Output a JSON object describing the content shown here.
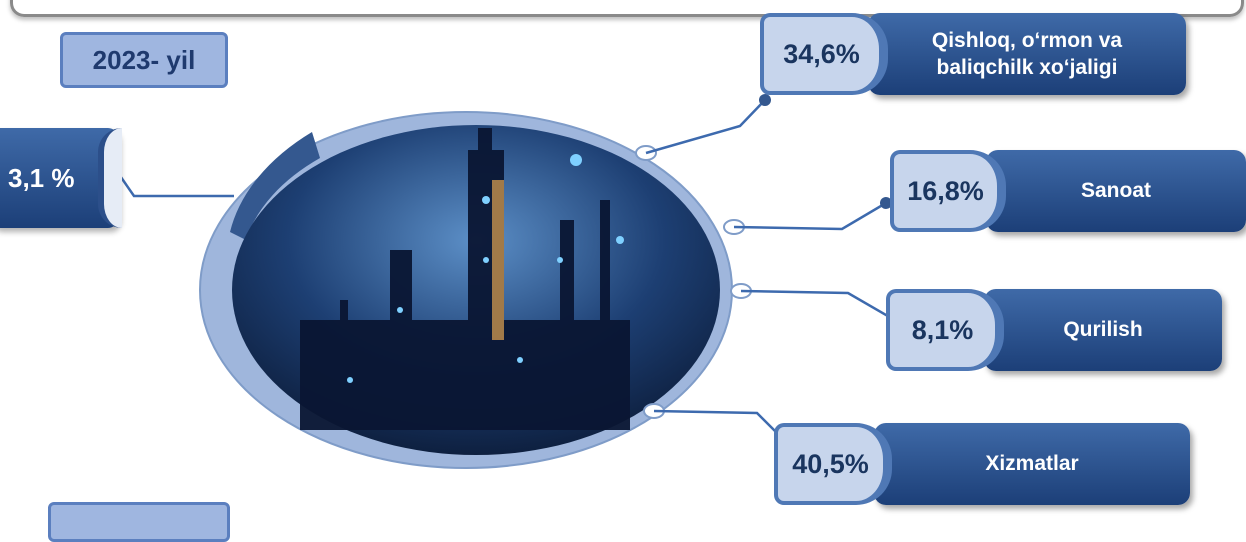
{
  "year": "2023- yil",
  "segments": [
    {
      "id": "agriculture",
      "label_line1": "Qishloq, o‘rmon va",
      "label_line2": "baliqchilk xo‘jaligi",
      "percent": "34,6%"
    },
    {
      "id": "industry",
      "label": "Sanoat",
      "percent": "16,8%"
    },
    {
      "id": "construction",
      "label": "Qurilish",
      "percent": "8,1%"
    },
    {
      "id": "services",
      "label": "Xizmatlar",
      "percent": "40,5%"
    },
    {
      "id": "other",
      "percent": "3,1 %"
    }
  ],
  "colors": {
    "label_blue": "#2d5596",
    "badge_light": "#c7d5ec",
    "ring": "#9fb6dc",
    "accent_dark": "#34588f"
  },
  "icons": [
    "factory-photo"
  ]
}
